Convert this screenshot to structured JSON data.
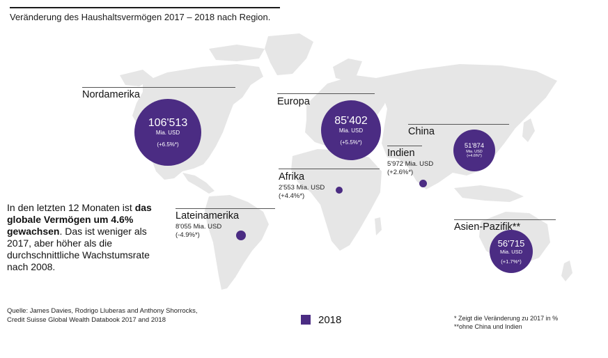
{
  "header": {
    "title": "Veränderung des Haushaltsvermögen 2017 – 2018 nach Region."
  },
  "regions": {
    "nordamerika": {
      "name": "Nordamerika",
      "value": "106'513",
      "unit": "Mia. USD",
      "change": "(+6.5%*)"
    },
    "europa": {
      "name": "Europa",
      "value": "85'402",
      "unit": "Mia. USD",
      "change": "(+5.5%*)"
    },
    "china": {
      "name": "China",
      "value": "51'874",
      "unit": "Mia. USD",
      "change": "(+4.6%*)"
    },
    "indien": {
      "name": "Indien",
      "value": "5'972 Mia. USD",
      "change": "(+2.6%*)"
    },
    "afrika": {
      "name": "Afrika",
      "value": "2'553 Mia. USD",
      "change": "(+4.4%*)"
    },
    "lateinamerika": {
      "name": "Lateinamerika",
      "value": "8'055 Mia. USD",
      "change": "(-4.9%*)"
    },
    "asien_pazifik": {
      "name": "Asien-Pazifik**",
      "value": "56'715",
      "unit": "Mia. USD",
      "change": "(+1.7%*)"
    }
  },
  "note": {
    "line1": "In den letzten 12 Monaten ist",
    "bold": "das globale Vermögen um 4.6% gewachsen",
    "line3": ". Das ist weniger als 2017, aber höher als die durchschnittliche Wachstumsrate nach 2008."
  },
  "source": {
    "line1": "Quelle: James Davies, Rodrigo Lluberas and Anthony Shorrocks,",
    "line2": "Credit Suisse Global Wealth Databook 2017 and 2018"
  },
  "legend": {
    "label": "2018",
    "color": "#4b2c83"
  },
  "footnotes": {
    "line1": "* Zeigt die Veränderung zu 2017 in %",
    "line2": "**ohne China und Indien"
  },
  "colors": {
    "bubble": "#4b2c83",
    "land": "#e6e6e6"
  }
}
